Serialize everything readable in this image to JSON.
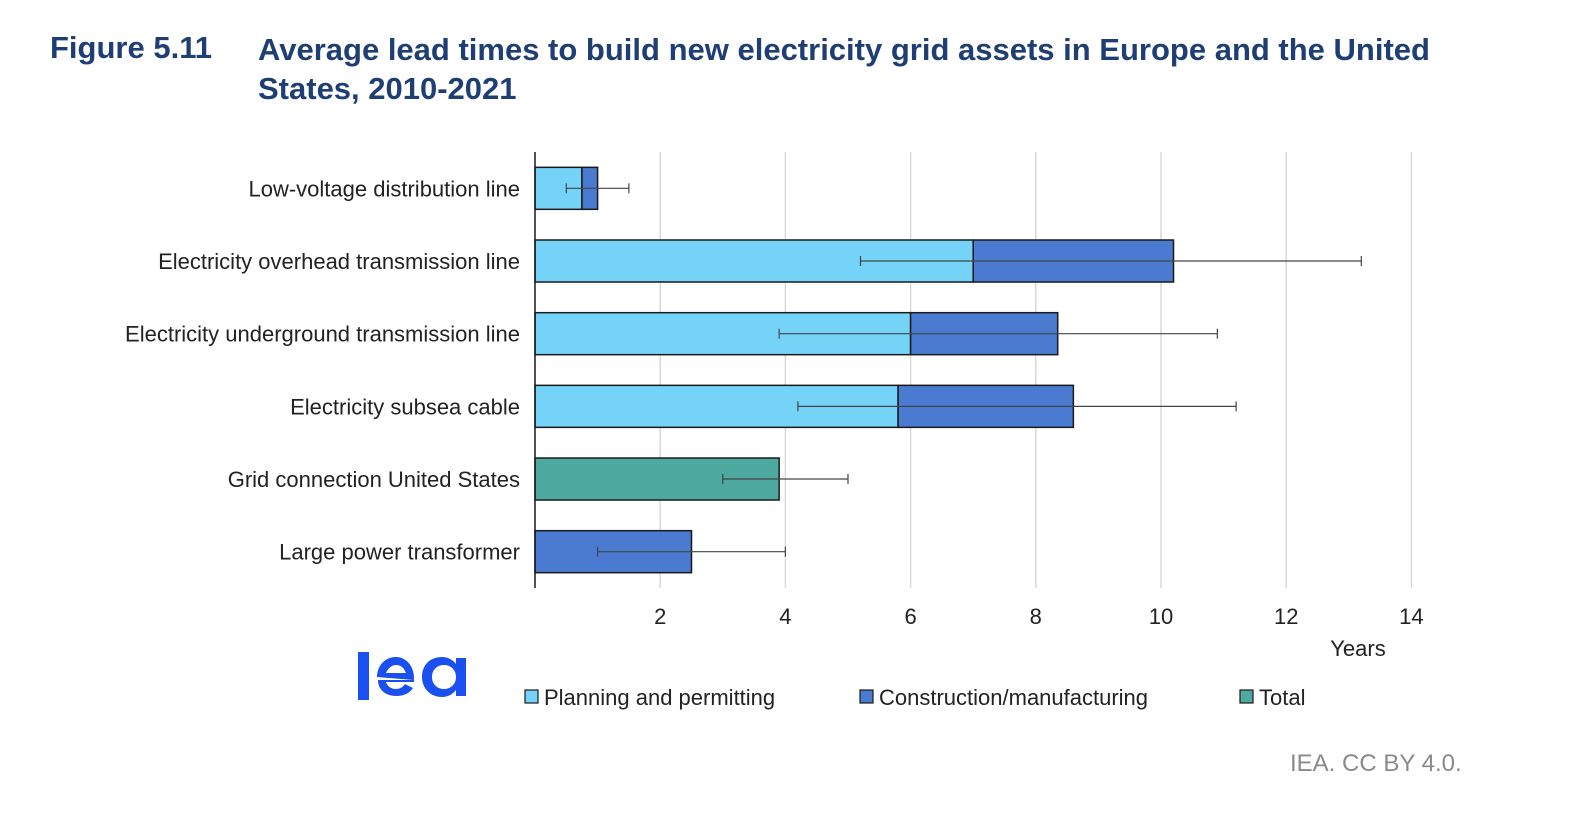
{
  "figure": {
    "label": "Figure 5.11",
    "title": "Average lead times to build new electricity grid assets in Europe and the United States, 2010-2021",
    "credit": "IEA. CC BY 4.0.",
    "logo_text": "iea"
  },
  "colors": {
    "planning": "#75d3f7",
    "construction": "#4a7bd1",
    "total": "#4ea9a0",
    "title": "#1f3f74",
    "grid": "#d9d9d9",
    "text": "#222222",
    "logo": "#1a4ff0"
  },
  "chart_data": {
    "type": "bar",
    "orientation": "horizontal",
    "stacked": true,
    "categories": [
      "Low-voltage distribution line",
      "Electricity overhead transmission line",
      "Electricity underground transmission line",
      "Electricity subsea cable",
      "Grid connection United States",
      "Large power transformer"
    ],
    "series": [
      {
        "name": "Planning and permitting",
        "color_key": "planning",
        "values": [
          0.75,
          7.0,
          6.0,
          5.8,
          0,
          0
        ]
      },
      {
        "name": "Construction/manufacturing",
        "color_key": "construction",
        "values": [
          0.25,
          3.2,
          2.35,
          2.8,
          0,
          2.5
        ]
      },
      {
        "name": "Total",
        "color_key": "total",
        "values": [
          0,
          0,
          0,
          0,
          3.9,
          0
        ]
      }
    ],
    "error_bars": [
      {
        "low": 0.5,
        "high": 1.5
      },
      {
        "low": 5.2,
        "high": 13.2
      },
      {
        "low": 3.9,
        "high": 10.9
      },
      {
        "low": 4.2,
        "high": 11.2
      },
      {
        "low": 3.0,
        "high": 5.0
      },
      {
        "low": 1.0,
        "high": 4.0
      }
    ],
    "xlim": [
      0,
      14
    ],
    "xticks": [
      2,
      4,
      6,
      8,
      10,
      12,
      14
    ],
    "xlabel": "Years",
    "grid": true,
    "legend_position": "bottom"
  }
}
